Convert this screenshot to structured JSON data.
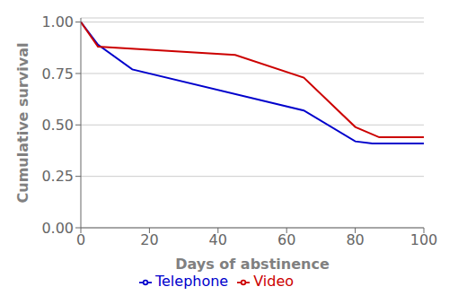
{
  "chart_data": {
    "type": "line",
    "xlabel": "Days of abstinence",
    "ylabel": "Cumulative survival",
    "xlim": [
      0,
      100
    ],
    "ylim": [
      0.0,
      1.02
    ],
    "xticks": [
      0,
      20,
      40,
      60,
      80,
      100
    ],
    "yticks": [
      {
        "value": 0,
        "label": "0.00"
      },
      0.25,
      {
        "value": 0.5,
        "label": "0.50"
      },
      0.75,
      {
        "value": 1,
        "label": "1.00"
      }
    ],
    "grid": "y",
    "legend": "bottom",
    "series": [
      {
        "name": "Telephone",
        "color": "#0000cc",
        "x": [
          0,
          5,
          15,
          65,
          80,
          85,
          100
        ],
        "values": [
          1.0,
          0.89,
          0.77,
          0.57,
          0.42,
          0.41,
          0.41
        ]
      },
      {
        "name": "Video",
        "color": "#cc0000",
        "x": [
          0,
          5,
          45,
          65,
          80,
          87,
          100
        ],
        "values": [
          1.0,
          0.88,
          0.84,
          0.73,
          0.49,
          0.44,
          0.44
        ]
      }
    ]
  }
}
